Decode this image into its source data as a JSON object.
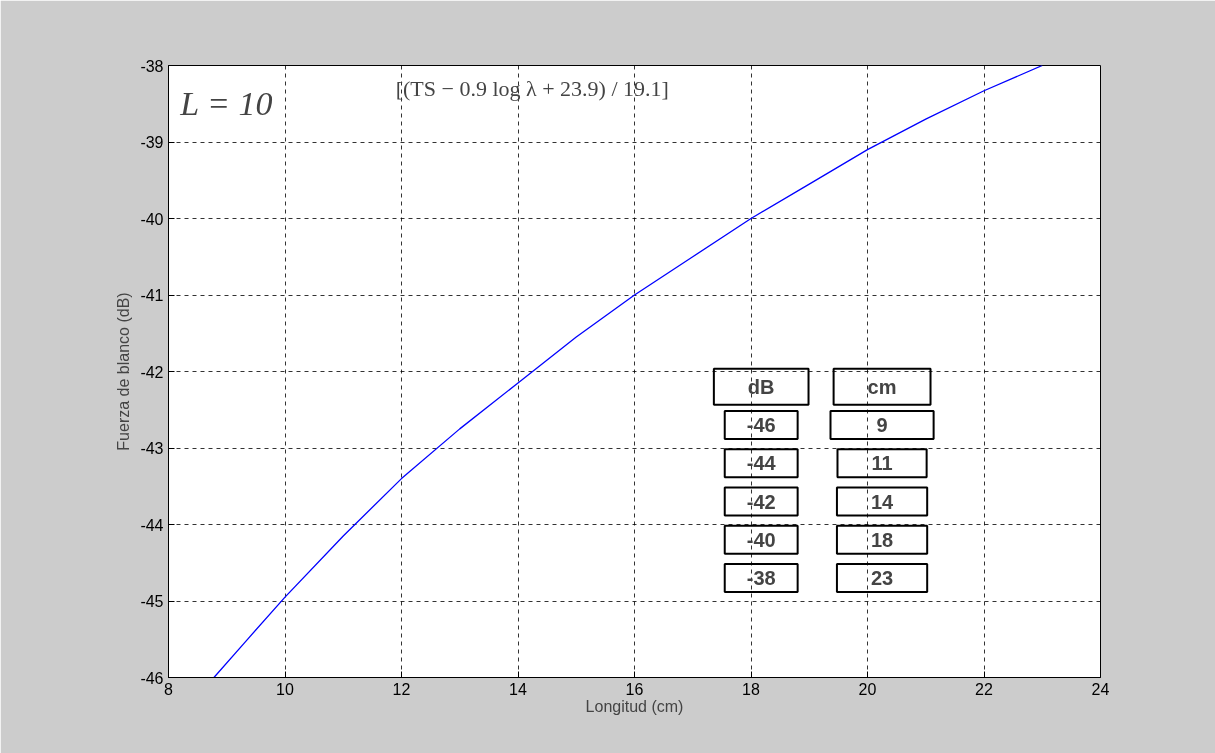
{
  "chart_data": {
    "type": "line",
    "xlabel": "Longitud (cm)",
    "ylabel": "Fuerza de blanco (dB)",
    "x": [
      8.78,
      9.3,
      10,
      11,
      12,
      13,
      14,
      15,
      16,
      17,
      18,
      19,
      20,
      21,
      22,
      23
    ],
    "series": [
      {
        "color": "#0000ff",
        "values": [
          -46,
          -45.55,
          -44.95,
          -44.15,
          -43.4,
          -42.75,
          -42.15,
          -41.55,
          -41.0,
          -40.5,
          -40.0,
          -39.55,
          -39.1,
          -38.7,
          -38.33,
          -38.0
        ]
      }
    ],
    "xlim": [
      8,
      24
    ],
    "ylim": [
      -46,
      -38
    ],
    "xticks": [
      8,
      10,
      12,
      14,
      16,
      18,
      20,
      22,
      24
    ],
    "yticks": [
      -46,
      -45,
      -44,
      -43,
      -42,
      -41,
      -40,
      -39,
      -38
    ],
    "grid": true,
    "marker": "none",
    "line_style": "solid",
    "annotations": [
      "L = 10$^{[(TS − 0.9 log λ + 23.9) / 19.1]}$",
      "dB",
      "cm",
      "-46",
      "9",
      "-44",
      "11",
      "-42",
      "14",
      "-40",
      "18",
      "-38",
      "23"
    ]
  }
}
